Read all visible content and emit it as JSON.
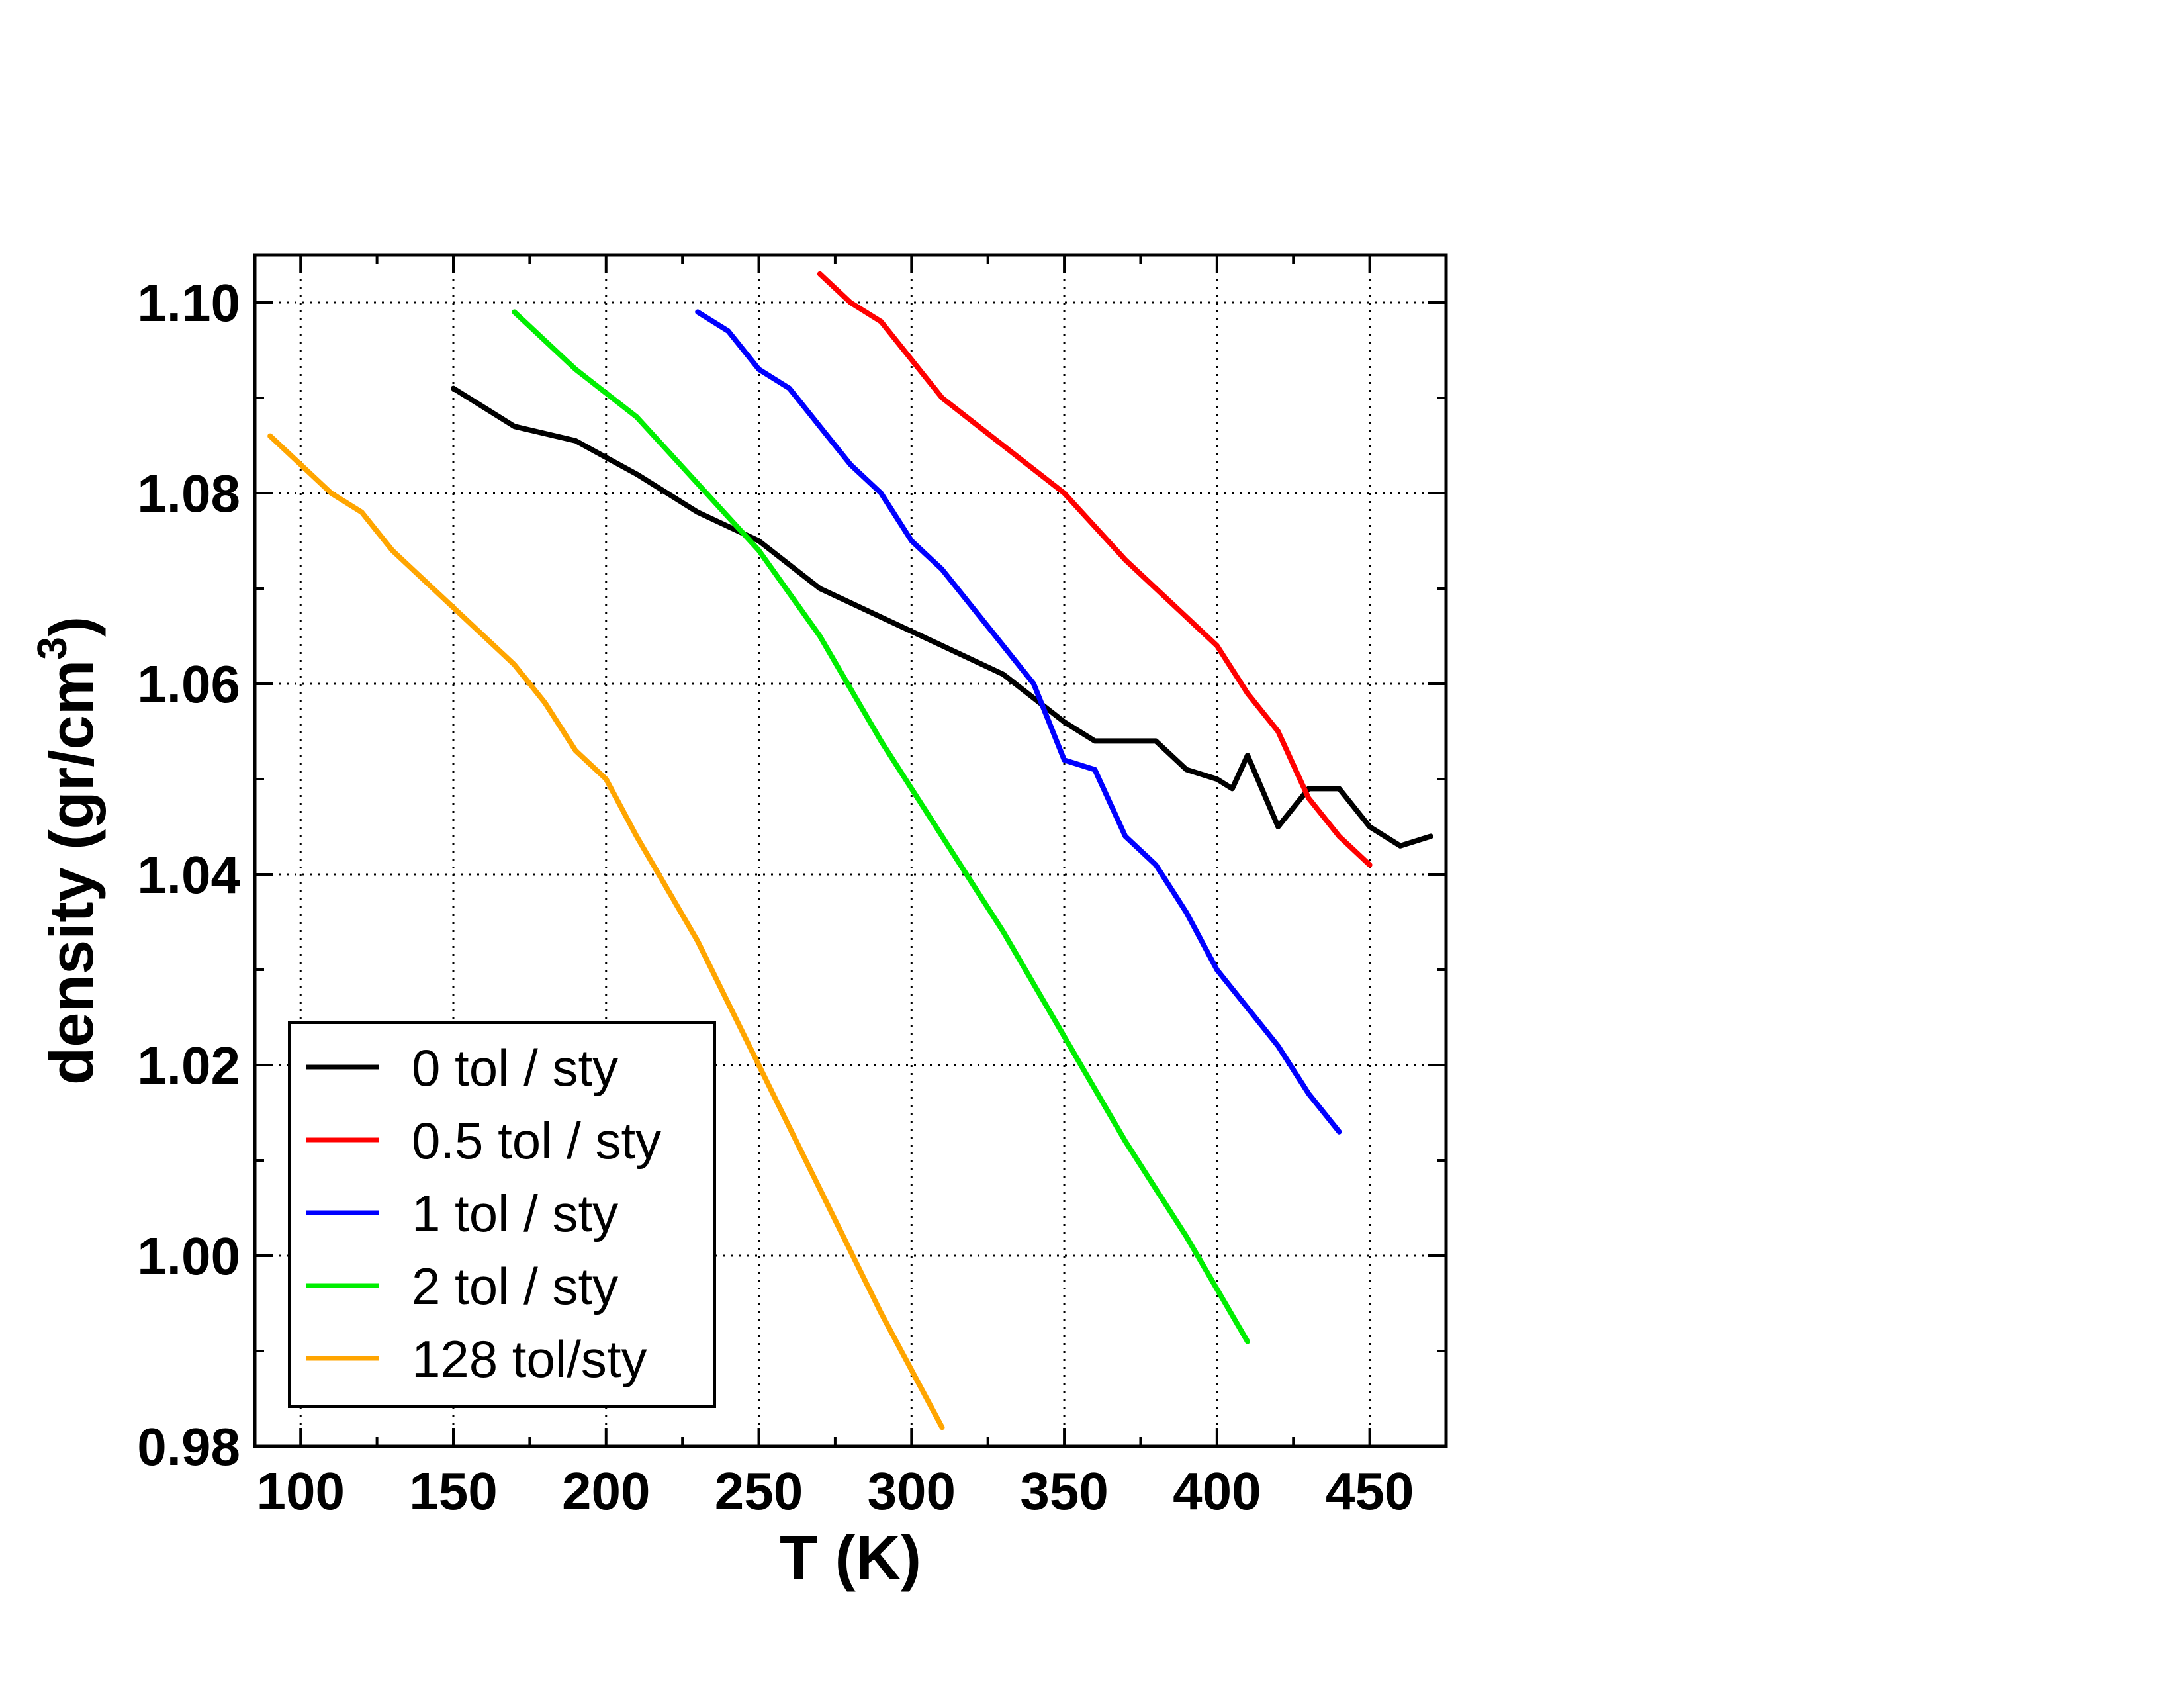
{
  "chart_data": {
    "type": "line",
    "title": "",
    "xlabel": "T (K)",
    "ylabel_main": "density (gr/cm",
    "ylabel_sup": "3",
    "ylabel_close": ")",
    "xlim": [
      85,
      475
    ],
    "ylim": [
      0.98,
      1.105
    ],
    "x_ticks": [
      100,
      150,
      200,
      250,
      300,
      350,
      400,
      450
    ],
    "x_tick_labels": [
      "100",
      "150",
      "200",
      "250",
      "300",
      "350",
      "400",
      "450"
    ],
    "y_ticks": [
      0.98,
      1.0,
      1.02,
      1.04,
      1.06,
      1.08,
      1.1
    ],
    "y_tick_labels": [
      "0.98",
      "1.00",
      "1.02",
      "1.04",
      "1.06",
      "1.08",
      "1.10"
    ],
    "grid": true,
    "legend_position": "bottom-left",
    "series": [
      {
        "name": "0 tol / sty",
        "color": "#000000",
        "x": [
          150,
          170,
          190,
          210,
          230,
          250,
          270,
          290,
          310,
          330,
          350,
          360,
          370,
          380,
          390,
          400,
          405,
          410,
          420,
          430,
          440,
          450,
          460,
          470
        ],
        "y": [
          1.091,
          1.087,
          1.0855,
          1.082,
          1.078,
          1.075,
          1.07,
          1.067,
          1.064,
          1.061,
          1.056,
          1.054,
          1.054,
          1.054,
          1.051,
          1.05,
          1.049,
          1.0525,
          1.045,
          1.049,
          1.049,
          1.045,
          1.043,
          1.044
        ]
      },
      {
        "name": "0.5 tol / sty",
        "color": "#ff0000",
        "x": [
          270,
          280,
          290,
          300,
          310,
          330,
          350,
          370,
          390,
          400,
          410,
          420,
          430,
          440,
          450
        ],
        "y": [
          1.103,
          1.1,
          1.098,
          1.094,
          1.09,
          1.085,
          1.08,
          1.073,
          1.067,
          1.064,
          1.059,
          1.055,
          1.048,
          1.044,
          1.041
        ]
      },
      {
        "name": "1 tol / sty",
        "color": "#0000ff",
        "x": [
          230,
          240,
          250,
          260,
          270,
          280,
          290,
          300,
          310,
          320,
          330,
          340,
          350,
          360,
          370,
          380,
          390,
          400,
          410,
          420,
          430,
          440
        ],
        "y": [
          1.099,
          1.097,
          1.093,
          1.091,
          1.087,
          1.083,
          1.08,
          1.075,
          1.072,
          1.068,
          1.064,
          1.06,
          1.052,
          1.051,
          1.044,
          1.041,
          1.036,
          1.03,
          1.026,
          1.022,
          1.017,
          1.013
        ]
      },
      {
        "name": "2 tol / sty",
        "color": "#00ee00",
        "x": [
          170,
          190,
          210,
          230,
          250,
          270,
          290,
          310,
          330,
          350,
          370,
          390,
          410
        ],
        "y": [
          1.099,
          1.093,
          1.088,
          1.081,
          1.074,
          1.065,
          1.054,
          1.044,
          1.034,
          1.023,
          1.012,
          1.002,
          0.991
        ]
      },
      {
        "name": "128 tol/sty",
        "color": "#ffa500",
        "x": [
          90,
          110,
          120,
          130,
          150,
          170,
          180,
          190,
          200,
          210,
          230,
          250,
          270,
          290,
          310
        ],
        "y": [
          1.086,
          1.08,
          1.078,
          1.074,
          1.068,
          1.062,
          1.058,
          1.053,
          1.05,
          1.044,
          1.033,
          1.02,
          1.007,
          0.994,
          0.982
        ]
      }
    ]
  }
}
